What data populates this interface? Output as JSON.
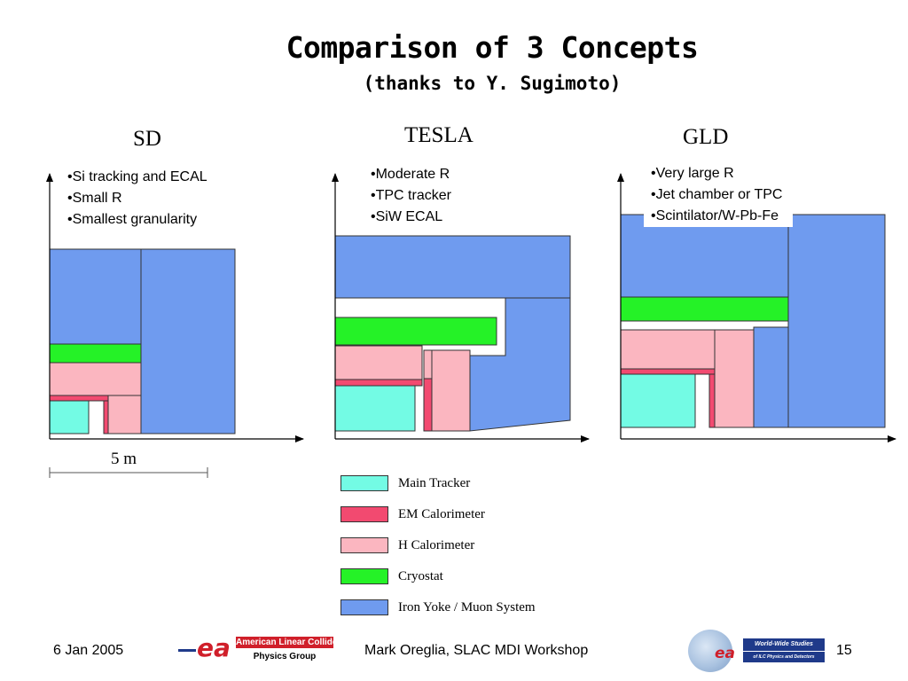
{
  "slide": {
    "title": "Comparison of 3 Concepts",
    "subtitle": "(thanks to Y. Sugimoto)"
  },
  "concepts": {
    "sd": {
      "name": "SD",
      "bullets": [
        "•Si tracking and ECAL",
        "•Small R",
        "•Smallest granularity"
      ]
    },
    "tesla": {
      "name": "TESLA",
      "bullets": [
        "•Moderate R",
        "•TPC tracker",
        "•SiW ECAL"
      ]
    },
    "gld": {
      "name": "GLD",
      "bullets": [
        "•Very large R",
        "•Jet chamber or TPC",
        "•Scintilator/W-Pb-Fe"
      ]
    }
  },
  "scale": {
    "label": "5 m"
  },
  "colors": {
    "main_tracker": "#73fbe4",
    "em_calorimeter": "#f24a70",
    "h_calorimeter": "#fbb6c0",
    "cryostat": "#25f227",
    "iron_yoke": "#6f9bef"
  },
  "legend": [
    {
      "label": "Main Tracker",
      "color": "#73fbe4"
    },
    {
      "label": "EM Calorimeter",
      "color": "#f24a70"
    },
    {
      "label": "H Calorimeter",
      "color": "#fbb6c0"
    },
    {
      "label": "Cryostat",
      "color": "#25f227"
    },
    {
      "label": "Iron Yoke / Muon System",
      "color": "#6f9bef"
    }
  ],
  "footer": {
    "date": "6 Jan 2005",
    "logo_left_text_1": "American Linear Collider",
    "logo_left_text_2": "Physics Group",
    "logo_left_letters": "ea",
    "author": "Mark Oreglia, SLAC MDI Workshop",
    "logo_right_text_1": "World-Wide Studies",
    "logo_right_text_2": "of ILC Physics and Detectors",
    "page": "15"
  }
}
